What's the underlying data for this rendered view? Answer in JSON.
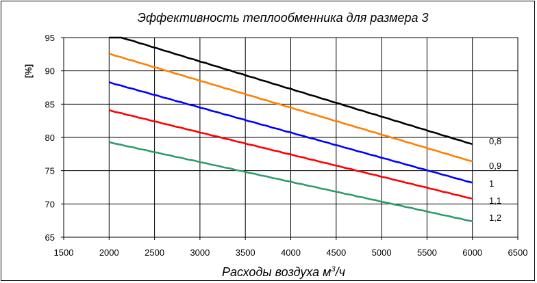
{
  "chart_data": {
    "type": "line",
    "title": "Эффективность теплообменника для размера 3",
    "xlabel": "Расходы воздуха м³/ч",
    "xlabel_main": "Расходы воздуха м",
    "xlabel_sup": "3",
    "xlabel_tail": "/ч",
    "ylabel": "[%]",
    "xlim": [
      1500,
      6500
    ],
    "ylim": [
      65,
      95
    ],
    "xticks": [
      1500,
      2000,
      2500,
      3000,
      3500,
      4000,
      4500,
      5000,
      5500,
      6000,
      6500
    ],
    "yticks": [
      65,
      70,
      75,
      80,
      85,
      90,
      95
    ],
    "grid": true,
    "series": [
      {
        "name": "0,8",
        "color": "#000000",
        "x": [
          2000,
          6000
        ],
        "y": [
          95.6,
          79.0
        ]
      },
      {
        "name": "0,9",
        "color": "#ff7f00",
        "x": [
          2000,
          6000
        ],
        "y": [
          92.6,
          76.4
        ]
      },
      {
        "name": "1",
        "color": "#0000ff",
        "x": [
          2000,
          6000
        ],
        "y": [
          88.3,
          73.2
        ]
      },
      {
        "name": "1,1",
        "color": "#ff0000",
        "x": [
          2000,
          6000
        ],
        "y": [
          84.1,
          70.8
        ]
      },
      {
        "name": "1,2",
        "color": "#2e9b6b",
        "x": [
          2000,
          6000
        ],
        "y": [
          79.3,
          67.4
        ]
      }
    ]
  }
}
